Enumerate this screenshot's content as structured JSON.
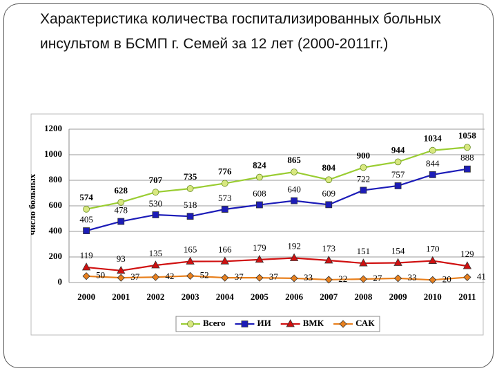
{
  "chart_data": {
    "type": "line",
    "title": "Характеристика количества госпитализированных больных инсультом в БСМП г. Семей за 12 лет (2000-2011гг.)",
    "ylabel": "число больных",
    "categories": [
      "2000",
      "2001",
      "2002",
      "2003",
      "2004",
      "2005",
      "2006",
      "2007",
      "2008",
      "2009",
      "2010",
      "2011"
    ],
    "series": [
      {
        "name": "Всего",
        "color": "#9acd32",
        "marker": "circle",
        "values": [
          574,
          628,
          707,
          735,
          776,
          824,
          865,
          804,
          900,
          944,
          1034,
          1058
        ]
      },
      {
        "name": "ИИ",
        "color": "#1c1cb8",
        "marker": "square",
        "values": [
          405,
          478,
          530,
          518,
          573,
          608,
          640,
          609,
          722,
          757,
          844,
          888
        ]
      },
      {
        "name": "ВМК",
        "color": "#d01010",
        "marker": "triangle",
        "values": [
          119,
          93,
          135,
          165,
          166,
          179,
          192,
          173,
          151,
          154,
          170,
          129
        ]
      },
      {
        "name": "САК",
        "color": "#e8801e",
        "marker": "diamond",
        "values": [
          50,
          37,
          42,
          52,
          37,
          37,
          33,
          22,
          27,
          33,
          20,
          41
        ]
      }
    ],
    "ylim": [
      0,
      1200
    ],
    "yticks": [
      0,
      200,
      400,
      600,
      800,
      1000,
      1200
    ],
    "grid": true,
    "legend": "bottom"
  }
}
